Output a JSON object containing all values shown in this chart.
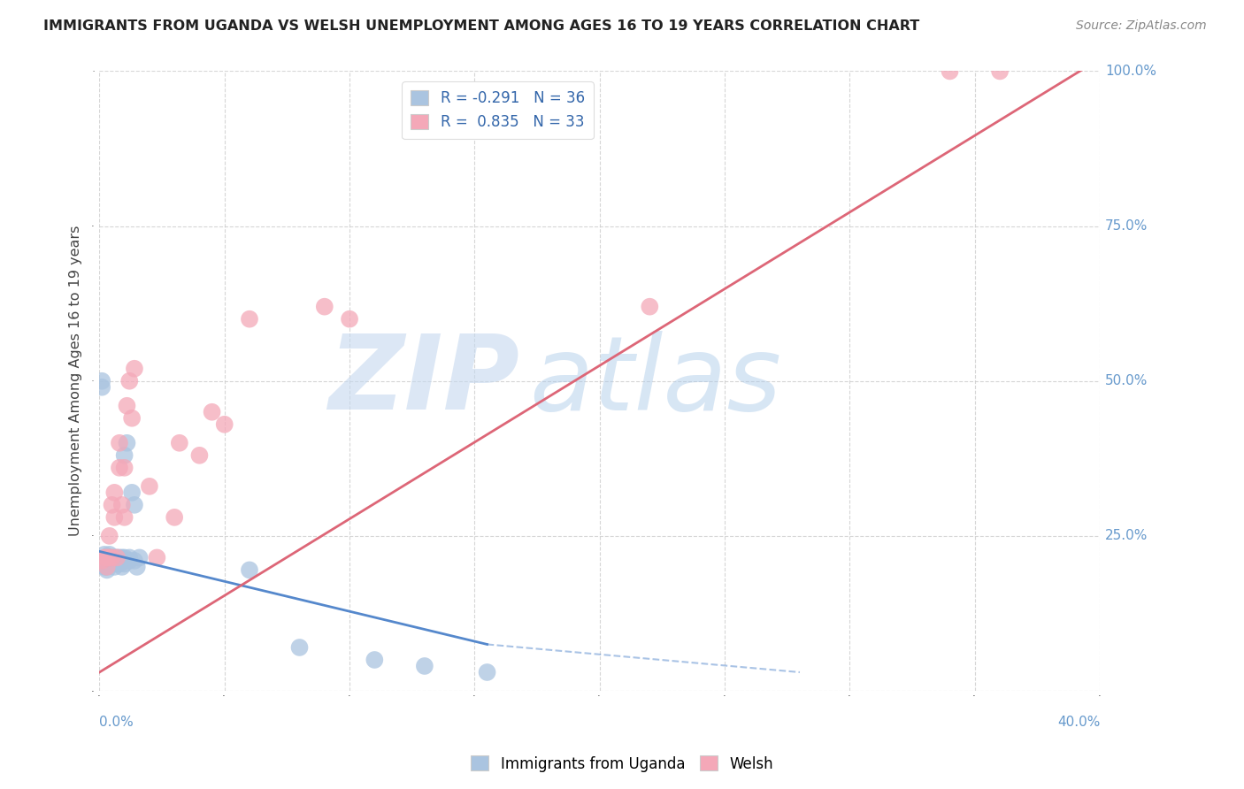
{
  "title": "IMMIGRANTS FROM UGANDA VS WELSH UNEMPLOYMENT AMONG AGES 16 TO 19 YEARS CORRELATION CHART",
  "source": "Source: ZipAtlas.com",
  "ylabel": "Unemployment Among Ages 16 to 19 years",
  "xlim": [
    0,
    0.4
  ],
  "ylim": [
    0,
    1.0
  ],
  "yticks": [
    0,
    0.25,
    0.5,
    0.75,
    1.0
  ],
  "xticks": [
    0,
    0.05,
    0.1,
    0.15,
    0.2,
    0.25,
    0.3,
    0.35,
    0.4
  ],
  "legend_r1": "R = -0.291",
  "legend_n1": "N = 36",
  "legend_r2": "R =  0.835",
  "legend_n2": "N = 33",
  "blue_color": "#aac4e0",
  "pink_color": "#f4a8b8",
  "blue_line_color": "#5588cc",
  "pink_line_color": "#dd6677",
  "watermark_zip": "ZIP",
  "watermark_atlas": "atlas",
  "blue_scatter_x": [
    0.001,
    0.001,
    0.002,
    0.002,
    0.003,
    0.003,
    0.004,
    0.004,
    0.005,
    0.005,
    0.006,
    0.006,
    0.006,
    0.007,
    0.007,
    0.007,
    0.008,
    0.008,
    0.009,
    0.009,
    0.01,
    0.01,
    0.01,
    0.011,
    0.012,
    0.012,
    0.013,
    0.014,
    0.014,
    0.015,
    0.016,
    0.06,
    0.08,
    0.11,
    0.13,
    0.155
  ],
  "blue_scatter_y": [
    0.49,
    0.5,
    0.2,
    0.22,
    0.195,
    0.2,
    0.215,
    0.22,
    0.21,
    0.215,
    0.2,
    0.21,
    0.215,
    0.205,
    0.21,
    0.215,
    0.205,
    0.215,
    0.2,
    0.215,
    0.205,
    0.215,
    0.38,
    0.4,
    0.215,
    0.21,
    0.32,
    0.3,
    0.21,
    0.2,
    0.215,
    0.195,
    0.07,
    0.05,
    0.04,
    0.03
  ],
  "pink_scatter_x": [
    0.001,
    0.002,
    0.003,
    0.003,
    0.004,
    0.004,
    0.005,
    0.005,
    0.006,
    0.006,
    0.007,
    0.008,
    0.008,
    0.009,
    0.01,
    0.01,
    0.011,
    0.012,
    0.013,
    0.014,
    0.02,
    0.023,
    0.03,
    0.032,
    0.04,
    0.045,
    0.05,
    0.06,
    0.09,
    0.1,
    0.22,
    0.34,
    0.36
  ],
  "pink_scatter_y": [
    0.21,
    0.215,
    0.2,
    0.215,
    0.215,
    0.25,
    0.215,
    0.3,
    0.28,
    0.32,
    0.215,
    0.36,
    0.4,
    0.3,
    0.28,
    0.36,
    0.46,
    0.5,
    0.44,
    0.52,
    0.33,
    0.215,
    0.28,
    0.4,
    0.38,
    0.45,
    0.43,
    0.6,
    0.62,
    0.6,
    0.62,
    1.0,
    1.0
  ],
  "blue_line_x": [
    0.0,
    0.155
  ],
  "blue_line_y": [
    0.225,
    0.075
  ],
  "pink_line_x": [
    0.0,
    0.4
  ],
  "pink_line_y": [
    0.03,
    1.02
  ]
}
